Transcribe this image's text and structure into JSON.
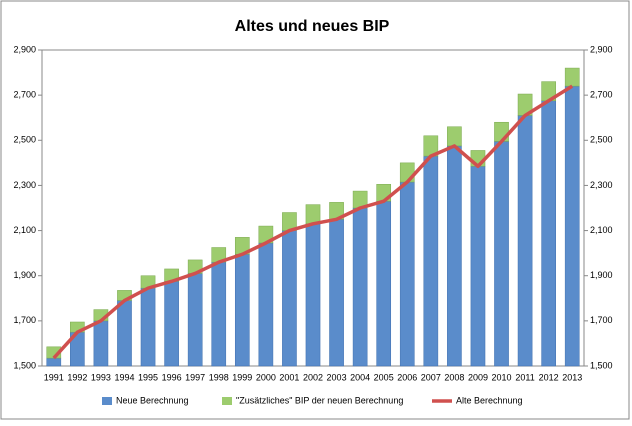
{
  "chart_data": {
    "type": "bar",
    "stacked": true,
    "title": "Altes und neues BIP",
    "categories": [
      "1991",
      "1992",
      "1993",
      "1994",
      "1995",
      "1996",
      "1997",
      "1998",
      "1999",
      "2000",
      "2001",
      "2002",
      "2003",
      "2004",
      "2005",
      "2006",
      "2007",
      "2008",
      "2009",
      "2010",
      "2011",
      "2012",
      "2013"
    ],
    "series": [
      {
        "name": "Neue Berechnung",
        "color": "#5a8ccb",
        "kind": "bar",
        "values": [
          1535,
          1650,
          1700,
          1790,
          1845,
          1875,
          1910,
          1960,
          1995,
          2045,
          2100,
          2130,
          2150,
          2200,
          2230,
          2315,
          2430,
          2475,
          2385,
          2495,
          2610,
          2675,
          2740
        ]
      },
      {
        "name": "\"Zusätzliches\" BIP der neuen Berechnung",
        "color": "#9dcc6e",
        "kind": "bar",
        "values": [
          50,
          45,
          50,
          45,
          55,
          55,
          60,
          65,
          75,
          75,
          80,
          85,
          75,
          75,
          75,
          85,
          90,
          85,
          70,
          85,
          95,
          85,
          80
        ]
      },
      {
        "name": "Alte Berechnung",
        "color": "#d0504e",
        "kind": "line",
        "values": [
          1535,
          1650,
          1700,
          1790,
          1845,
          1875,
          1910,
          1960,
          1995,
          2045,
          2100,
          2130,
          2150,
          2200,
          2230,
          2315,
          2430,
          2475,
          2385,
          2495,
          2610,
          2675,
          2740
        ]
      }
    ],
    "ylim": [
      1500,
      2900
    ],
    "yticks": [
      {
        "value": 1500,
        "label": "1,500"
      },
      {
        "value": 1700,
        "label": "1,700"
      },
      {
        "value": 1900,
        "label": "1,900"
      },
      {
        "value": 2100,
        "label": "2,100"
      },
      {
        "value": 2300,
        "label": "2,300"
      },
      {
        "value": 2500,
        "label": "2,500"
      },
      {
        "value": 2700,
        "label": "2,700"
      },
      {
        "value": 2900,
        "label": "2,900"
      }
    ],
    "y2lim": [
      1500,
      2900
    ],
    "y2ticks": [
      {
        "value": 1500,
        "label": "1,500"
      },
      {
        "value": 1700,
        "label": "1,700"
      },
      {
        "value": 1900,
        "label": "1,900"
      },
      {
        "value": 2100,
        "label": "2,100"
      },
      {
        "value": 2300,
        "label": "2,300"
      },
      {
        "value": 2500,
        "label": "2,500"
      },
      {
        "value": 2700,
        "label": "2,700"
      },
      {
        "value": 2900,
        "label": "2,900"
      }
    ],
    "legend": "bottom"
  }
}
